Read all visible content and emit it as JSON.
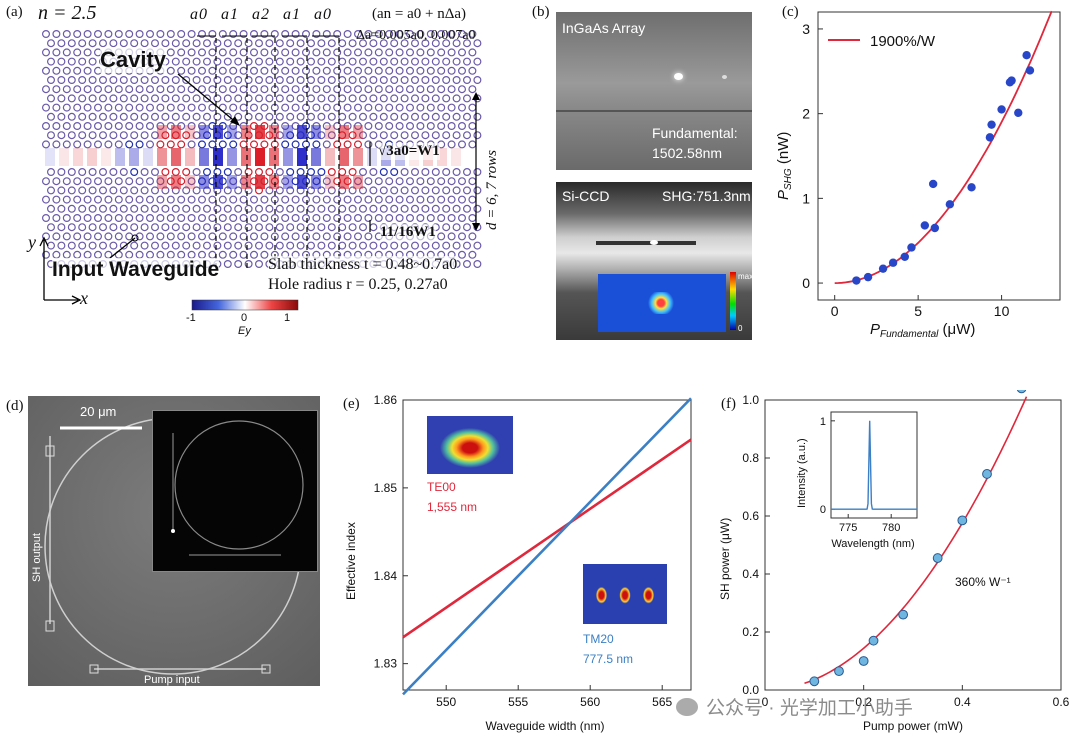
{
  "panels": {
    "a": {
      "label": "(a)",
      "n_value": "n = 2.5",
      "lattice_labels": [
        "a0",
        "a1",
        "a2",
        "a1",
        "a0"
      ],
      "formula_1": "(an = a0 + nΔa)",
      "formula_2": "Δa=0.005a0, 0.007a0",
      "cavity": "Cavity",
      "w1_label": "√3a0=W1",
      "rows_label": "d = 6, 7 rows",
      "w1_frac": "11/16W1",
      "input_waveguide": "Input Waveguide",
      "slab": "Slab thickness t = 0.48~0.7a0",
      "hole": "Hole radius r = 0.25, 0.27a0",
      "axis_y": "y",
      "axis_x": "x",
      "cbar_ticks": [
        "-1",
        "0",
        "1"
      ],
      "cbar_label": "Ey"
    },
    "b": {
      "label": "(b)",
      "top_title": "InGaAs Array",
      "top_caption_1": "Fundamental:",
      "top_caption_2": "1502.58nm",
      "bottom_left": "Si-CCD",
      "bottom_right": "SHG:751.3nm",
      "cbar_max": "max",
      "cbar_min": "0"
    },
    "c": {
      "label": "(c)",
      "legend": "1900%/W",
      "ylabel": "P_SHG (nW)",
      "xlabel": "P_Fundamental (μW)"
    },
    "d": {
      "label": "(d)",
      "scale": "20 μm",
      "sh_output": "SH output",
      "pump_input": "Pump input"
    },
    "e": {
      "label": "(e)",
      "te_mode": "TE00",
      "te_wavelength": "1,555 nm",
      "tm_mode": "TM20",
      "tm_wavelength": "777.5 nm",
      "ylabel": "Effective index",
      "xlabel": "Waveguide width (nm)"
    },
    "f": {
      "label": "(f)",
      "ylabel": "SH power (μW)",
      "xlabel": "Pump power (mW)",
      "efficiency": "360% W⁻¹",
      "inset_ylabel": "Intensity (a.u.)",
      "inset_xlabel": "Wavelength (nm)"
    }
  },
  "watermark": "公众号 · 光学加工小助手",
  "colors": {
    "red": "#e0283c",
    "blue": "#3b7fc4",
    "dot": "#2846c8",
    "cyan": "#6fb6e0"
  },
  "chart_data": [
    {
      "id": "c",
      "type": "scatter",
      "title": "",
      "xlabel": "P_Fundamental (μW)",
      "ylabel": "P_SHG (nW)",
      "xlim": [
        -1,
        13.5
      ],
      "ylim": [
        -0.2,
        3.2
      ],
      "xticks": [
        0,
        5,
        10
      ],
      "yticks": [
        0,
        1,
        2,
        3
      ],
      "series": [
        {
          "name": "data",
          "x": [
            1.3,
            2.0,
            2.9,
            3.5,
            4.2,
            4.6,
            5.4,
            5.9,
            6.0,
            6.9,
            8.2,
            9.3,
            9.4,
            10.0,
            10.5,
            10.6,
            11.0,
            11.5,
            11.7
          ],
          "y": [
            0.03,
            0.07,
            0.17,
            0.24,
            0.31,
            0.42,
            0.68,
            1.17,
            0.65,
            0.93,
            1.13,
            1.72,
            1.87,
            2.05,
            2.37,
            2.39,
            2.01,
            2.69,
            2.51
          ]
        },
        {
          "name": "1900%/W",
          "fit": "quadratic",
          "coef": 0.019,
          "x_range": [
            0,
            13
          ],
          "y_at_13": 3.2
        }
      ]
    },
    {
      "id": "e",
      "type": "line",
      "xlabel": "Waveguide width (nm)",
      "ylabel": "Effective index",
      "xlim": [
        547,
        567
      ],
      "ylim": [
        1.827,
        1.86
      ],
      "xticks": [
        550,
        555,
        560,
        565
      ],
      "yticks": [
        1.83,
        1.84,
        1.85,
        1.86
      ],
      "series": [
        {
          "name": "TE00 1,555 nm",
          "x": [
            547,
            567
          ],
          "y": [
            1.833,
            1.8555
          ]
        },
        {
          "name": "TM20 777.5 nm",
          "x": [
            547,
            567
          ],
          "y": [
            1.8265,
            1.8602
          ]
        }
      ]
    },
    {
      "id": "f",
      "type": "scatter",
      "xlabel": "Pump power (mW)",
      "ylabel": "SH power (μW)",
      "xlim": [
        0,
        0.6
      ],
      "ylim": [
        0,
        1.0
      ],
      "xticks": [
        0,
        0.2,
        0.4,
        0.6
      ],
      "yticks": [
        0,
        0.2,
        0.4,
        0.6,
        0.8,
        1.0
      ],
      "series": [
        {
          "name": "data",
          "x": [
            0.1,
            0.15,
            0.2,
            0.22,
            0.28,
            0.35,
            0.4,
            0.45,
            0.52
          ],
          "y": [
            0.03,
            0.065,
            0.1,
            0.17,
            0.26,
            0.455,
            0.585,
            0.745,
            1.04
          ]
        },
        {
          "name": "fit",
          "fit": "quadratic",
          "coef": 3.6,
          "x_range": [
            0.08,
            0.53
          ]
        }
      ]
    },
    {
      "id": "f-inset",
      "type": "line",
      "xlabel": "Wavelength (nm)",
      "ylabel": "Intensity (a.u.)",
      "xlim": [
        773,
        783
      ],
      "ylim": [
        -0.1,
        1.1
      ],
      "xticks": [
        775,
        780
      ],
      "yticks": [
        0,
        1
      ],
      "peak": {
        "center": 777.5,
        "height": 1.0
      }
    }
  ]
}
